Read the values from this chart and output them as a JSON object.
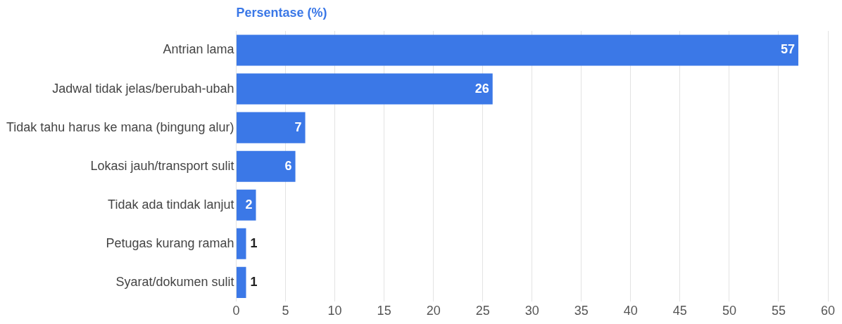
{
  "chart_data": {
    "type": "bar",
    "orientation": "horizontal",
    "title": "Persentase (%)",
    "categories": [
      "Antrian lama",
      "Jadwal tidak jelas/berubah-ubah",
      "Tidak tahu harus ke mana (bingung alur)",
      "Lokasi jauh/transport sulit",
      "Tidak ada tindak lanjut",
      "Petugas kurang ramah",
      "Syarat/dokumen sulit"
    ],
    "values": [
      57,
      26,
      7,
      6,
      2,
      1,
      1
    ],
    "color": "#3b78e7",
    "xlim": [
      0,
      60
    ],
    "xticks": [
      0,
      5,
      10,
      15,
      20,
      25,
      30,
      35,
      40,
      45,
      50,
      55,
      60
    ],
    "grid": "x",
    "legend": false,
    "data_labels": true
  }
}
